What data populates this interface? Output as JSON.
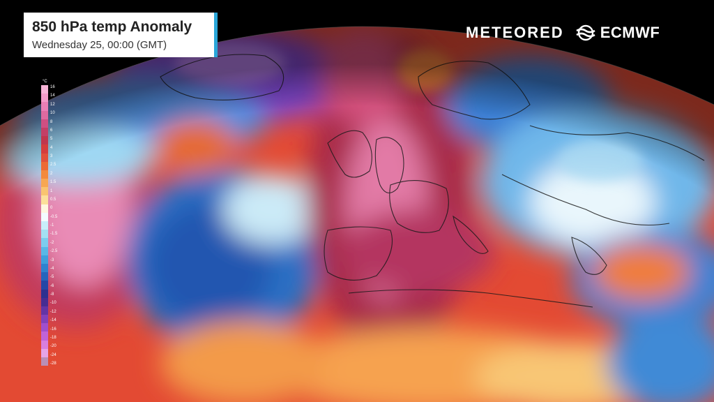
{
  "title": {
    "main": "850 hPa temp Anomaly",
    "subtitle": "Wednesday 25, 00:00 (GMT)"
  },
  "logos": {
    "meteored": "METEORED",
    "ecmwf": "ECMWF",
    "ecmwf_icon": "ecmwf-wave-icon"
  },
  "legend": {
    "unit": "°C",
    "labels": [
      "16",
      "14",
      "12",
      "10",
      "8",
      "6",
      "5",
      "4",
      "3",
      "2.5",
      "2",
      "1.5",
      "1",
      "0.5",
      "0",
      "-0.5",
      "-1",
      "-1.5",
      "-2",
      "-2.5",
      "-3",
      "-4",
      "-5",
      "-6",
      "-8",
      "-10",
      "-12",
      "-14",
      "-16",
      "-18",
      "-20",
      "-24",
      "-28"
    ],
    "colors": [
      "#f7b3d6",
      "#f39ac8",
      "#ea7fb6",
      "#de6aa0",
      "#cf4f82",
      "#c33f66",
      "#c0364d",
      "#d43d3d",
      "#e0503a",
      "#ec6a35",
      "#f38a3c",
      "#f7a752",
      "#f9c470",
      "#fcdf9a",
      "#fff6e0",
      "#f4fbff",
      "#c9eefa",
      "#a4e0f3",
      "#7ccdee",
      "#59b7e6",
      "#3f9fdc",
      "#2f82cf",
      "#2565bd",
      "#2447a6",
      "#2e3090",
      "#472c92",
      "#6334a5",
      "#8141bb",
      "#a04fcd",
      "#c063d8",
      "#d97fdd",
      "#e6a4e6",
      "#ba8fb5"
    ]
  },
  "colors": {
    "title_accent": "#2aa6d8",
    "background": "#000000"
  }
}
